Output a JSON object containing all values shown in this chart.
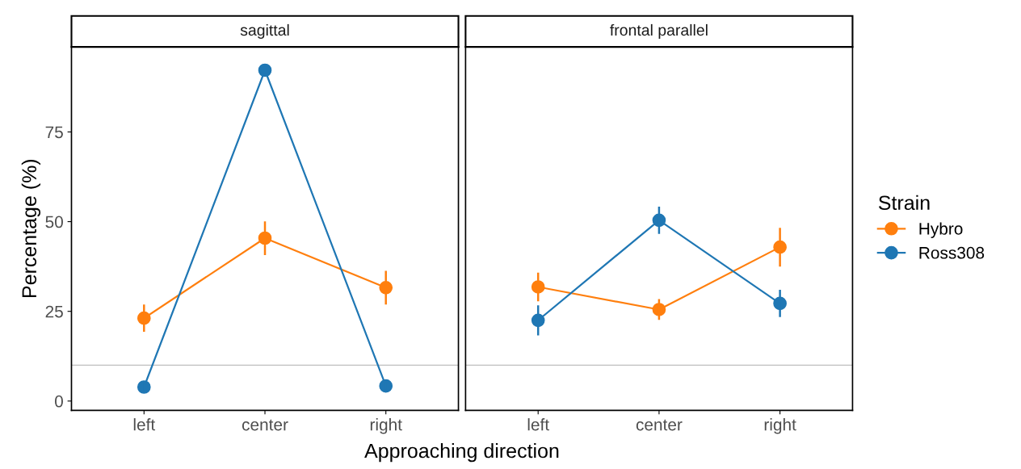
{
  "chart_data": [
    {
      "type": "line",
      "title": "sagittal",
      "legend_title": "Strain",
      "legend": "right",
      "xlabel": "Approaching direction",
      "ylabel": "Percentage (%)",
      "categories": [
        "left",
        "center",
        "right"
      ],
      "series": [
        {
          "name": "Hybro",
          "color": "#ff7f0e",
          "values": [
            23.1,
            45.4,
            31.6
          ],
          "errors": [
            3.8,
            4.7,
            4.7
          ]
        },
        {
          "name": "Ross308",
          "color": "#1f77b4",
          "values": [
            3.9,
            92.2,
            4.2
          ],
          "errors": [
            1,
            1,
            1
          ]
        }
      ],
      "ylim": [
        -2.6,
        98.7
      ],
      "yticks": [
        0,
        25,
        50,
        75
      ],
      "ref_lines": [
        {
          "axis": "y",
          "value": 10,
          "color": "#bebebe"
        }
      ],
      "marker": "circle",
      "grid": false
    },
    {
      "type": "line",
      "title": "frontal parallel",
      "categories": [
        "left",
        "center",
        "right"
      ],
      "series": [
        {
          "color": "#ff7f0e",
          "values": [
            31.8,
            25.5,
            42.9
          ],
          "errors": [
            4,
            2.9,
            5.4
          ]
        },
        {
          "color": "#1f77b4",
          "values": [
            22.5,
            50.4,
            27.2
          ],
          "errors": [
            4.2,
            3.8,
            3.8
          ]
        }
      ],
      "ylim": [
        -2.6,
        98.7
      ],
      "yticks": [
        0,
        25,
        50,
        75
      ],
      "tick_labels": "x",
      "ref_lines": [
        {
          "axis": "y",
          "value": 10,
          "color": "#bebebe"
        }
      ],
      "marker": "circle",
      "grid": false
    }
  ]
}
